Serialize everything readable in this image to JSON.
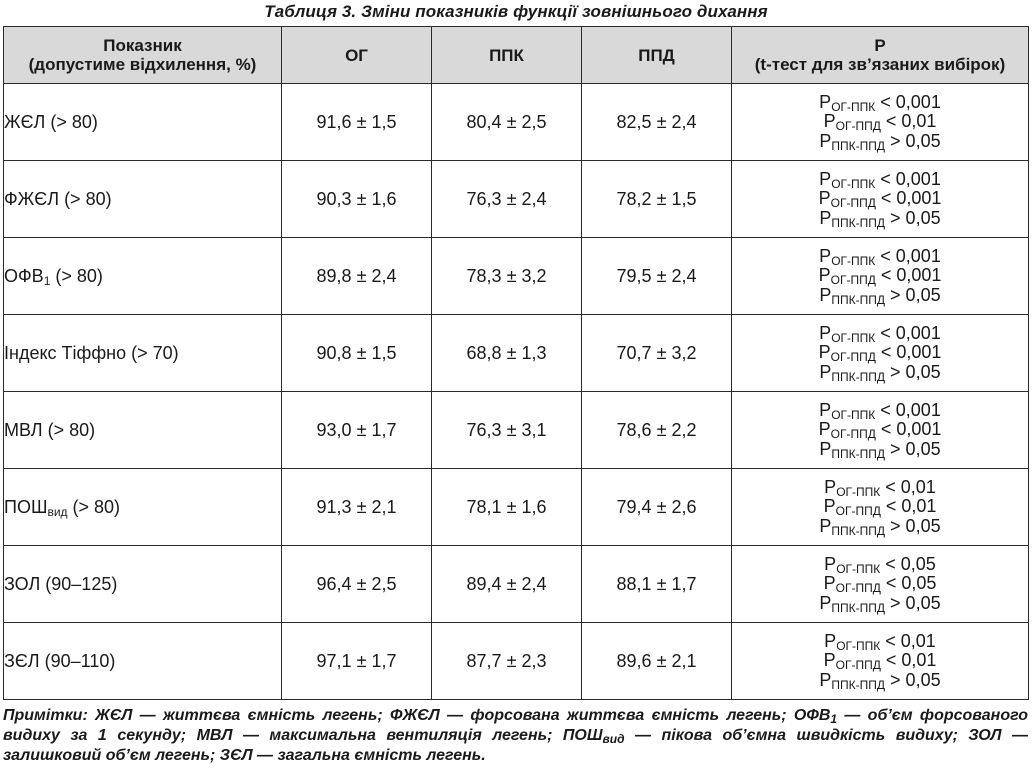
{
  "caption": "Таблиця 3. Зміни показників функції зовнішнього дихання",
  "headers": {
    "indicator_line1": "Показник",
    "indicator_line2": "(допустиме відхилення, %)",
    "og": "ОГ",
    "ppk": "ППК",
    "ppd": "ППД",
    "p_line1": "P",
    "p_line2": "(t-тест для зв’язаних вибірок)"
  },
  "p_symbol": "P",
  "p_subs": {
    "og_ppk": "ОГ-ППК",
    "og_ppd": "ОГ-ППД",
    "ppk_ppd": "ППК-ППД"
  },
  "rows": [
    {
      "name": "ЖЄЛ",
      "name_sub": "",
      "range": " (> 80)",
      "og": "91,6 ± 1,5",
      "ppk": "80,4 ± 2,5",
      "ppd": "82,5 ± 2,4",
      "p1": " < 0,001",
      "p2": " < 0,01",
      "p3": " > 0,05"
    },
    {
      "name": "ФЖЄЛ",
      "name_sub": "",
      "range": " (> 80)",
      "og": "90,3 ± 1,6",
      "ppk": "76,3 ± 2,4",
      "ppd": "78,2 ± 1,5",
      "p1": " < 0,001",
      "p2": " < 0,001",
      "p3": " > 0,05"
    },
    {
      "name": "ОФВ",
      "name_sub": "1",
      "range": " (> 80)",
      "og": "89,8 ± 2,4",
      "ppk": "78,3 ± 3,2",
      "ppd": "79,5 ± 2,4",
      "p1": " < 0,001",
      "p2": " < 0,001",
      "p3": " > 0,05"
    },
    {
      "name": "Індекс Тіффно",
      "name_sub": "",
      "range": " (> 70)",
      "og": "90,8 ± 1,5",
      "ppk": "68,8 ± 1,3",
      "ppd": "70,7 ± 3,2",
      "p1": " < 0,001",
      "p2": " < 0,001",
      "p3": " > 0,05"
    },
    {
      "name": "МВЛ",
      "name_sub": "",
      "range": " (> 80)",
      "og": "93,0 ± 1,7",
      "ppk": "76,3 ± 3,1",
      "ppd": "78,6 ± 2,2",
      "p1": " < 0,001",
      "p2": " < 0,001",
      "p3": " > 0,05"
    },
    {
      "name": "ПОШ",
      "name_sub": "вид",
      "range": " (> 80)",
      "og": "91,3 ± 2,1",
      "ppk": "78,1 ± 1,6",
      "ppd": "79,4 ± 2,6",
      "p1": " < 0,01",
      "p2": " < 0,01",
      "p3": " > 0,05"
    },
    {
      "name": "ЗОЛ",
      "name_sub": "",
      "range": " (90–125)",
      "og": "96,4 ± 2,5",
      "ppk": "89,4 ± 2,4",
      "ppd": "88,1 ± 1,7",
      "p1": " < 0,05",
      "p2": " < 0,05",
      "p3": " > 0,05"
    },
    {
      "name": "ЗЄЛ",
      "name_sub": "",
      "range": " (90–110)",
      "og": "97,1 ± 1,7",
      "ppk": "87,7 ± 2,3",
      "ppd": "89,6 ± 2,1",
      "p1": " < 0,01",
      "p2": " < 0,01",
      "p3": " > 0,05"
    }
  ],
  "note": {
    "part1": "Примітки: ЖЄЛ — життєва ємність легень; ФЖЄЛ — форсована життєва ємність легень; ОФВ",
    "sub1": "1",
    "part2": " — об’єм форсованого видиху за 1 секунду; МВЛ — максимальна вентиляція легень; ПОШ",
    "sub2": "вид",
    "part3": " — пікова об’ємна швидкість видиху; ЗОЛ — залишковий об’єм легень; ЗЄЛ — загальна ємність легень."
  }
}
